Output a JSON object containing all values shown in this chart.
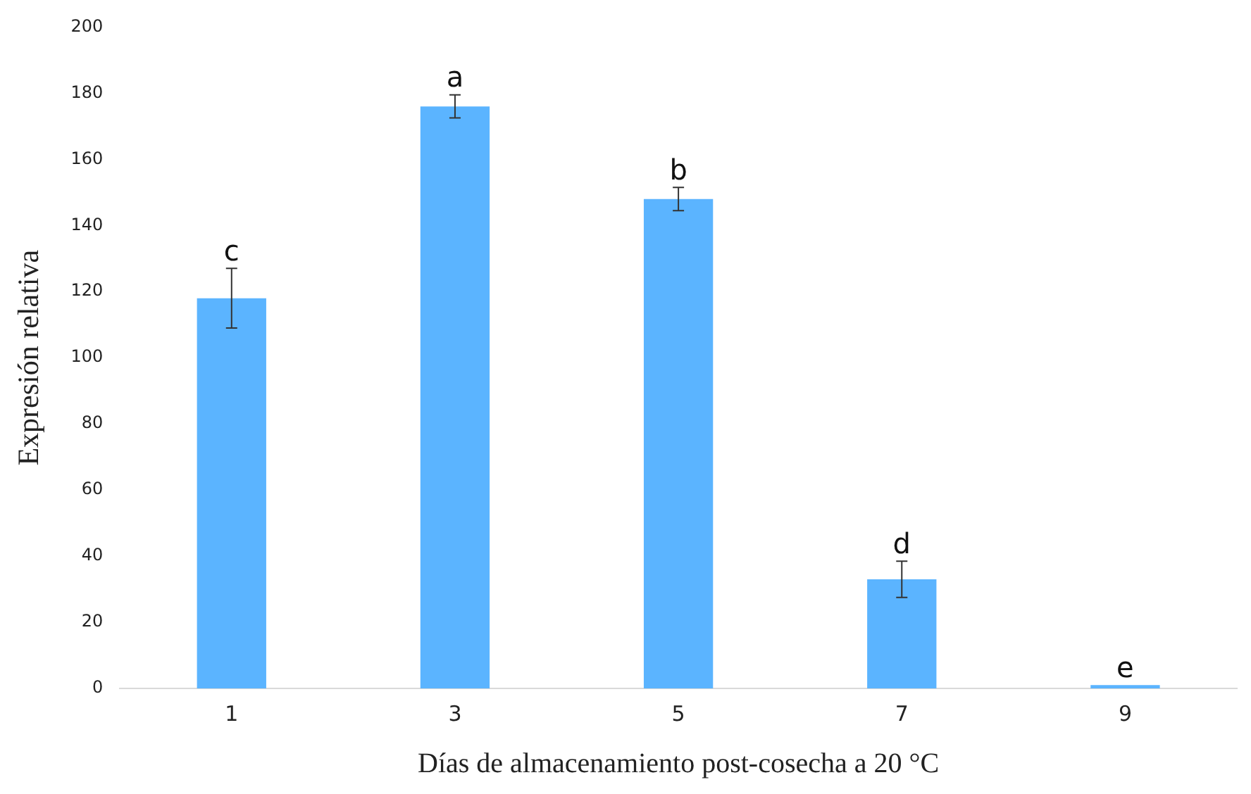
{
  "chart_data": {
    "type": "bar",
    "categories": [
      "1",
      "3",
      "5",
      "7",
      "9"
    ],
    "values": [
      118,
      176,
      148,
      33,
      1
    ],
    "errors": [
      9,
      3.5,
      3.5,
      5.5,
      null
    ],
    "color": "#5bb4ff",
    "xlabel": "Días de almacenamiento post-cosecha a 20 °C",
    "ylabel": "Expresión relativa",
    "ylim": [
      0,
      200
    ],
    "yticks": [
      0,
      20,
      40,
      60,
      80,
      100,
      120,
      140,
      160,
      180,
      200
    ],
    "grid": false,
    "legend": false,
    "annotations": [
      {
        "text": "c",
        "x": "1",
        "y": 127
      },
      {
        "text": "a",
        "x": "3",
        "y": 179.5
      },
      {
        "text": "b",
        "x": "5",
        "y": 151.5
      },
      {
        "text": "d",
        "x": "7",
        "y": 38.5
      },
      {
        "text": "e",
        "x": "9",
        "y": 1
      }
    ]
  }
}
